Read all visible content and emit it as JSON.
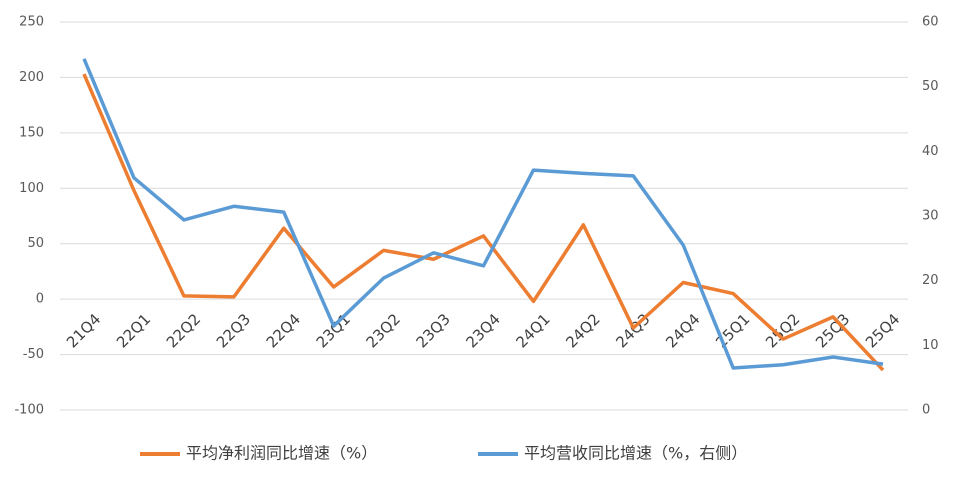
{
  "chart_data": {
    "type": "line",
    "categories": [
      "21Q4",
      "22Q1",
      "22Q2",
      "22Q3",
      "22Q4",
      "23Q1",
      "23Q2",
      "23Q3",
      "23Q4",
      "24Q1",
      "24Q2",
      "24Q3",
      "24Q4",
      "25Q1",
      "25Q2",
      "25Q3",
      "25Q4"
    ],
    "series": [
      {
        "name": "平均净利润同比增速（%）",
        "color": "#ed7d31",
        "values": [
          203,
          98,
          3,
          2,
          64,
          11,
          44,
          36,
          57,
          -2,
          67,
          -26,
          15,
          5,
          -36,
          -16,
          -64
        ]
      },
      {
        "name": "平均营收同比增速（%，右侧）",
        "color": "#5b9bd5",
        "axis": "y2",
        "values": [
          54.3,
          35.9,
          29.4,
          31.5,
          30.6,
          13,
          20.4,
          24.3,
          22.3,
          37.1,
          36.6,
          36.2,
          25.5,
          6.5,
          7,
          8.2,
          7.1
        ]
      }
    ],
    "ylim": [
      -100,
      250
    ],
    "yticks": [
      -100,
      -50,
      0,
      50,
      100,
      150,
      200,
      250
    ],
    "y2lim": [
      0,
      60
    ],
    "y2ticks": [
      0,
      10,
      20,
      30,
      40,
      50,
      60
    ],
    "grid": true,
    "legend": "bottom"
  }
}
